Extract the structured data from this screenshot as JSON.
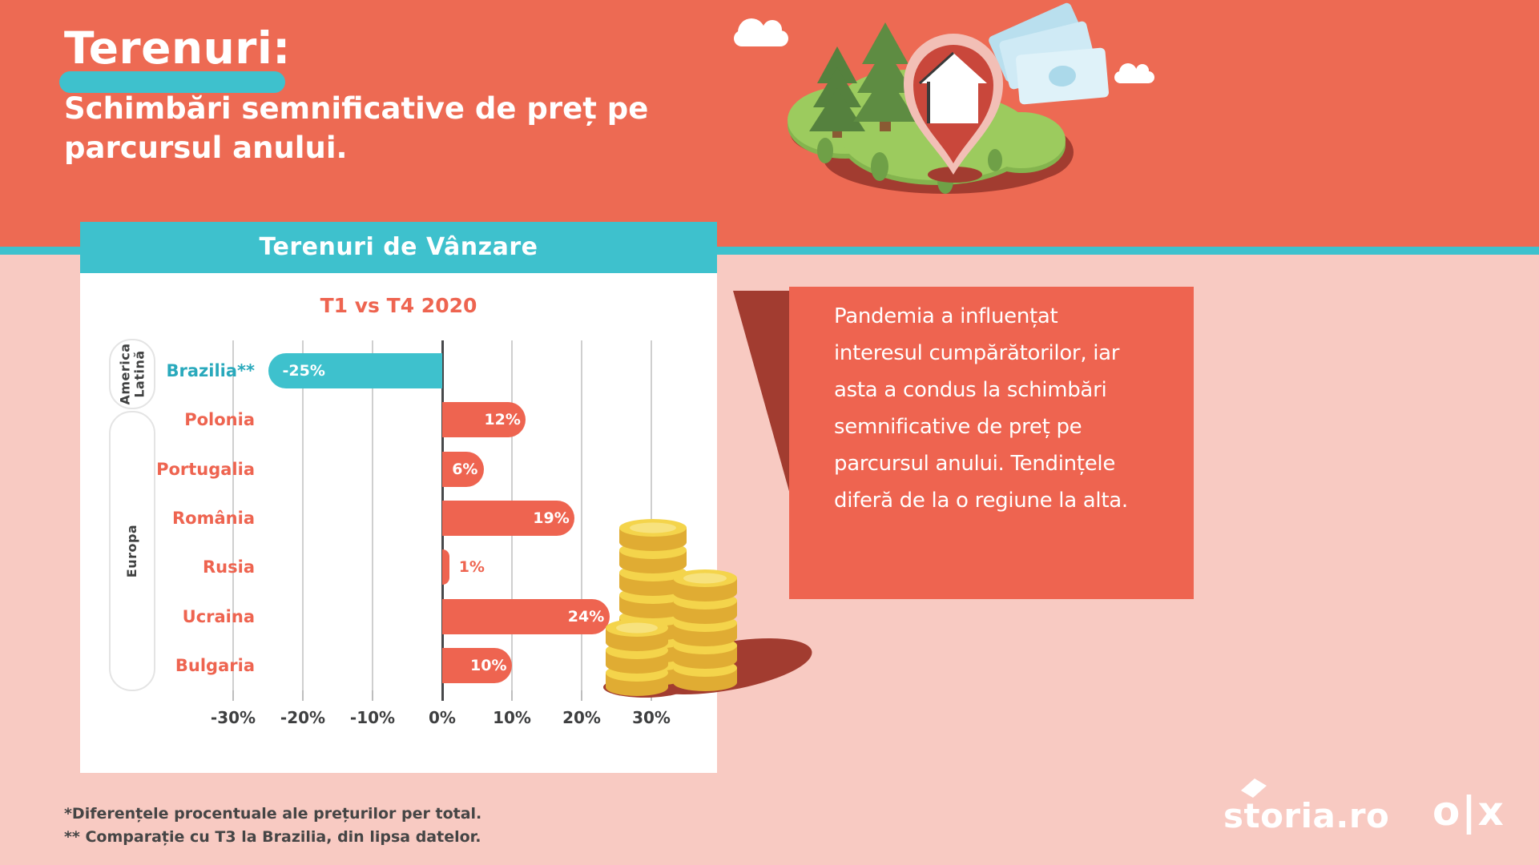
{
  "page": {
    "title": "Terenuri:",
    "subtitle": "Schimbări semnificative de preț pe parcursul anului.",
    "footnote_line1": "*Diferențele procentuale ale prețurilor per total.",
    "footnote_line2": "** Comparație cu T3 la Brazilia, din lipsa datelor.",
    "background_colors": {
      "top": "#ED6A53",
      "divider": "#3EC1CD",
      "bottom": "#F8CAC2"
    },
    "logos": {
      "storia": "storia.ro",
      "olx": "o|x"
    }
  },
  "callout": {
    "lines": [
      "Pandemia a influențat",
      "interesul cumpărătorilor, iar",
      "asta a condus la schimbări",
      "semnificative de preț pe",
      "parcursul anului. Tendințele",
      "diferă de la o regiune la alta."
    ],
    "box_color": "#EE6450",
    "tail_color": "#A23C30",
    "text_color": "#FFFFFF"
  },
  "chart_data": {
    "type": "bar",
    "orientation": "horizontal",
    "title": "Terenuri de Vânzare",
    "subtitle": "T1 vs T4 2020",
    "groups": [
      {
        "label": "America Latină",
        "countries": [
          "Brazilia**"
        ]
      },
      {
        "label": "Europa",
        "countries": [
          "Polonia",
          "Portugalia",
          "România",
          "Rusia",
          "Ucraina",
          "Bulgaria"
        ]
      }
    ],
    "categories": [
      "Brazilia**",
      "Polonia",
      "Portugalia",
      "România",
      "Rusia",
      "Ucraina",
      "Bulgaria"
    ],
    "values": [
      -25,
      12,
      6,
      19,
      1,
      24,
      10
    ],
    "value_labels": [
      "-25%",
      "12%",
      "6%",
      "19%",
      "1%",
      "24%",
      "10%"
    ],
    "x_ticks": [
      "-30%",
      "-20%",
      "-10%",
      "0%",
      "10%",
      "20%",
      "30%"
    ],
    "x_tick_values": [
      -30,
      -20,
      -10,
      0,
      10,
      20,
      30
    ],
    "xlim": [
      -30,
      30
    ],
    "grid": true,
    "colors": {
      "positive_bar": "#EE6450",
      "negative_bar": "#3EC1CD",
      "positive_label": "#EE6450",
      "negative_label": "#29A9BC",
      "value_text": "#FFFFFF",
      "tick_text": "#3E3F40",
      "gridline": "#CFCFCF",
      "axis": "#47484A"
    }
  }
}
